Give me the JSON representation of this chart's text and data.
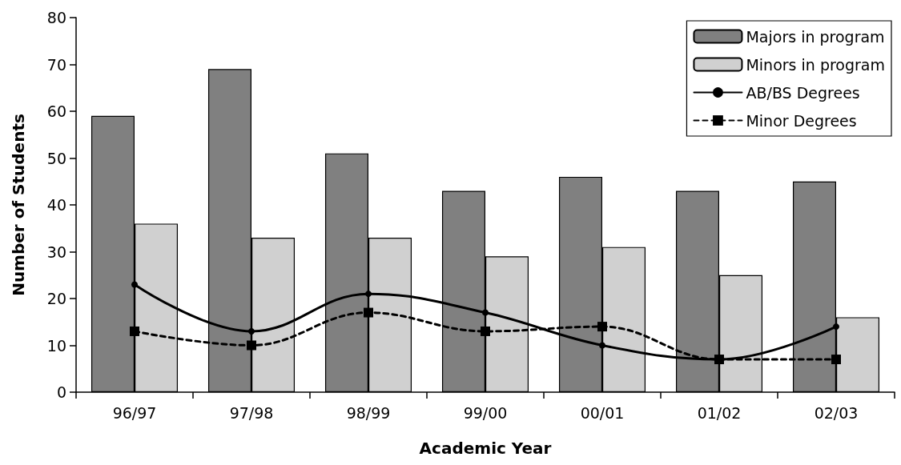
{
  "chart_data": {
    "type": "bar",
    "xlabel": "Academic Year",
    "ylabel": "Number of Students",
    "categories": [
      "96/97",
      "97/98",
      "98/99",
      "99/00",
      "00/01",
      "01/02",
      "02/03"
    ],
    "series": [
      {
        "name": "Majors in program",
        "color": "#808080",
        "values": [
          59,
          69,
          51,
          43,
          46,
          43,
          45
        ]
      },
      {
        "name": "Minors in program",
        "color": "#d0d0d0",
        "values": [
          36,
          33,
          33,
          29,
          31,
          25,
          16
        ]
      },
      {
        "name": "AB/BS Degrees",
        "type": "line",
        "color": "#000000",
        "marker": "circle",
        "line_style": "solid",
        "values": [
          23,
          13,
          21,
          17,
          10,
          7,
          14
        ]
      },
      {
        "name": "Minor Degrees",
        "type": "line",
        "color": "#000000",
        "marker": "square",
        "line_style": "dashed",
        "values": [
          13,
          10,
          17,
          13,
          14,
          7,
          7
        ]
      }
    ],
    "ylim": [
      0,
      80
    ],
    "yticks": [
      0,
      10,
      20,
      30,
      40,
      50,
      60,
      70,
      80
    ],
    "grid": false,
    "legend": "top right"
  }
}
